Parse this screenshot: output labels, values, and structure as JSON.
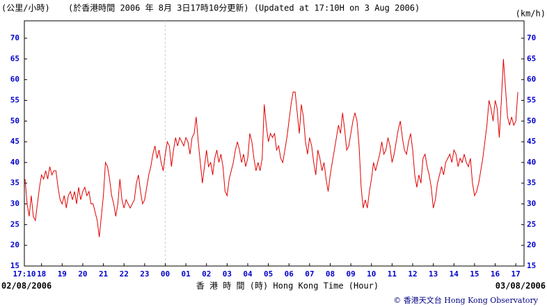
{
  "chart_data": {
    "type": "line",
    "y_unit_left": "(公里/小時)",
    "title": "(於香港時間 2006 年 8月 3日17時10分更新) (Updated at 17:10H on 3 Aug 2006)",
    "y_unit_right": "(km/h)",
    "x_label": "香 港 時 間 (時) Hong Kong Time (Hour)",
    "date_start": "02/08/2006",
    "date_end": "03/08/2006",
    "credit": "© 香港天文台 Hong Kong Observatory",
    "xlim": [
      17.1667,
      41.4
    ],
    "ylim": [
      15,
      74.2
    ],
    "yticks": [
      15,
      20,
      25,
      30,
      35,
      40,
      45,
      50,
      55,
      60,
      65,
      70
    ],
    "xticks": [
      {
        "value": 17.1667,
        "label": "17:10"
      },
      18,
      19,
      20,
      21,
      22,
      23,
      {
        "value": 24,
        "label": "00"
      },
      {
        "value": 25,
        "label": "01"
      },
      {
        "value": 26,
        "label": "02"
      },
      {
        "value": 27,
        "label": "03"
      },
      {
        "value": 28,
        "label": "04"
      },
      {
        "value": 29,
        "label": "05"
      },
      {
        "value": 30,
        "label": "06"
      },
      {
        "value": 31,
        "label": "07"
      },
      {
        "value": 32,
        "label": "08"
      },
      {
        "value": 33,
        "label": "09"
      },
      {
        "value": 34,
        "label": "10"
      },
      {
        "value": 35,
        "label": "11"
      },
      {
        "value": 36,
        "label": "12"
      },
      {
        "value": 37,
        "label": "13"
      },
      {
        "value": 38,
        "label": "14"
      },
      {
        "value": 39,
        "label": "15"
      },
      {
        "value": 40,
        "label": "16"
      },
      {
        "value": 41,
        "label": "17"
      }
    ],
    "vline_x": 24,
    "grid": false,
    "x": [
      17.2,
      17.3,
      17.4,
      17.5,
      17.6,
      17.7,
      17.8,
      17.9,
      18.0,
      18.1,
      18.2,
      18.3,
      18.4,
      18.5,
      18.6,
      18.7,
      18.8,
      18.9,
      19.0,
      19.1,
      19.2,
      19.3,
      19.4,
      19.5,
      19.6,
      19.7,
      19.8,
      19.9,
      20.0,
      20.1,
      20.2,
      20.3,
      20.4,
      20.5,
      20.6,
      20.7,
      20.8,
      20.9,
      21.0,
      21.1,
      21.2,
      21.3,
      21.4,
      21.5,
      21.6,
      21.7,
      21.8,
      21.9,
      22.0,
      22.1,
      22.2,
      22.3,
      22.4,
      22.5,
      22.6,
      22.7,
      22.8,
      22.9,
      23.0,
      23.1,
      23.2,
      23.3,
      23.4,
      23.5,
      23.6,
      23.7,
      23.8,
      23.9,
      24.0,
      24.1,
      24.2,
      24.3,
      24.4,
      24.5,
      24.6,
      24.7,
      24.8,
      24.9,
      25.0,
      25.1,
      25.2,
      25.3,
      25.4,
      25.5,
      25.6,
      25.7,
      25.8,
      25.9,
      26.0,
      26.1,
      26.2,
      26.3,
      26.4,
      26.5,
      26.6,
      26.7,
      26.8,
      26.9,
      27.0,
      27.1,
      27.2,
      27.3,
      27.4,
      27.5,
      27.6,
      27.7,
      27.8,
      27.9,
      28.0,
      28.1,
      28.2,
      28.3,
      28.4,
      28.5,
      28.6,
      28.7,
      28.8,
      28.9,
      29.0,
      29.1,
      29.2,
      29.3,
      29.4,
      29.5,
      29.6,
      29.7,
      29.8,
      29.9,
      30.0,
      30.1,
      30.2,
      30.3,
      30.4,
      30.5,
      30.6,
      30.7,
      30.8,
      30.9,
      31.0,
      31.1,
      31.2,
      31.3,
      31.4,
      31.5,
      31.6,
      31.7,
      31.8,
      31.9,
      32.0,
      32.1,
      32.2,
      32.3,
      32.4,
      32.5,
      32.6,
      32.7,
      32.8,
      32.9,
      33.0,
      33.1,
      33.2,
      33.3,
      33.4,
      33.5,
      33.6,
      33.7,
      33.8,
      33.9,
      34.0,
      34.1,
      34.2,
      34.3,
      34.4,
      34.5,
      34.6,
      34.7,
      34.8,
      34.9,
      35.0,
      35.1,
      35.2,
      35.3,
      35.4,
      35.5,
      35.6,
      35.7,
      35.8,
      35.9,
      36.0,
      36.1,
      36.2,
      36.3,
      36.4,
      36.5,
      36.6,
      36.7,
      36.8,
      36.9,
      37.0,
      37.1,
      37.2,
      37.3,
      37.4,
      37.5,
      37.6,
      37.7,
      37.8,
      37.9,
      38.0,
      38.1,
      38.2,
      38.3,
      38.4,
      38.5,
      38.6,
      38.7,
      38.8,
      38.9,
      39.0,
      39.1,
      39.2,
      39.3,
      39.4,
      39.5,
      39.6,
      39.7,
      39.8,
      39.9,
      40.0,
      40.1,
      40.2,
      40.3,
      40.4,
      40.5,
      40.6,
      40.7,
      40.8,
      40.9,
      41.0,
      41.1
    ],
    "series": [
      {
        "color": "#e00000",
        "values": [
          36,
          30,
          27,
          32,
          27,
          26,
          30,
          34,
          37,
          36,
          38,
          36,
          39,
          37,
          38,
          38,
          34,
          31,
          30,
          32,
          29,
          32,
          33,
          31,
          33,
          30,
          34,
          31,
          33,
          34,
          32,
          33,
          30,
          30,
          28,
          26,
          22,
          27,
          32,
          40,
          39,
          36,
          32,
          30,
          27,
          30,
          36,
          31,
          29,
          31,
          30,
          29,
          30,
          31,
          35,
          37,
          33,
          30,
          31,
          34,
          37,
          39,
          42,
          44,
          41,
          43,
          40,
          38,
          42,
          45,
          44,
          39,
          43,
          46,
          44,
          46,
          45,
          44,
          46,
          45,
          42,
          46,
          47,
          51,
          45,
          40,
          35,
          39,
          43,
          39,
          40,
          37,
          41,
          43,
          40,
          42,
          39,
          33,
          32,
          36,
          38,
          40,
          43,
          45,
          43,
          40,
          42,
          39,
          41,
          47,
          45,
          41,
          38,
          40,
          38,
          41,
          54,
          49,
          45,
          47,
          46,
          47,
          43,
          44,
          41,
          40,
          43,
          46,
          50,
          54,
          57,
          57,
          52,
          47,
          54,
          51,
          45,
          42,
          46,
          44,
          40,
          37,
          43,
          41,
          38,
          40,
          36,
          33,
          37,
          40,
          43,
          46,
          49,
          47,
          52,
          48,
          43,
          44,
          47,
          50,
          52,
          50,
          44,
          34,
          29,
          31,
          29,
          33,
          36,
          40,
          38,
          40,
          42,
          45,
          42,
          43,
          46,
          44,
          40,
          42,
          45,
          48,
          50,
          46,
          43,
          42,
          45,
          47,
          43,
          37,
          34,
          37,
          35,
          41,
          42,
          39,
          37,
          34,
          29,
          31,
          35,
          37,
          39,
          37,
          40,
          41,
          42,
          40,
          43,
          42,
          39,
          41,
          40,
          42,
          40,
          39,
          41,
          35,
          32,
          33,
          35,
          38,
          41,
          45,
          49,
          55,
          53,
          50,
          55,
          53,
          46,
          55,
          65,
          58,
          51,
          49,
          51,
          49,
          50,
          57
        ]
      }
    ]
  }
}
